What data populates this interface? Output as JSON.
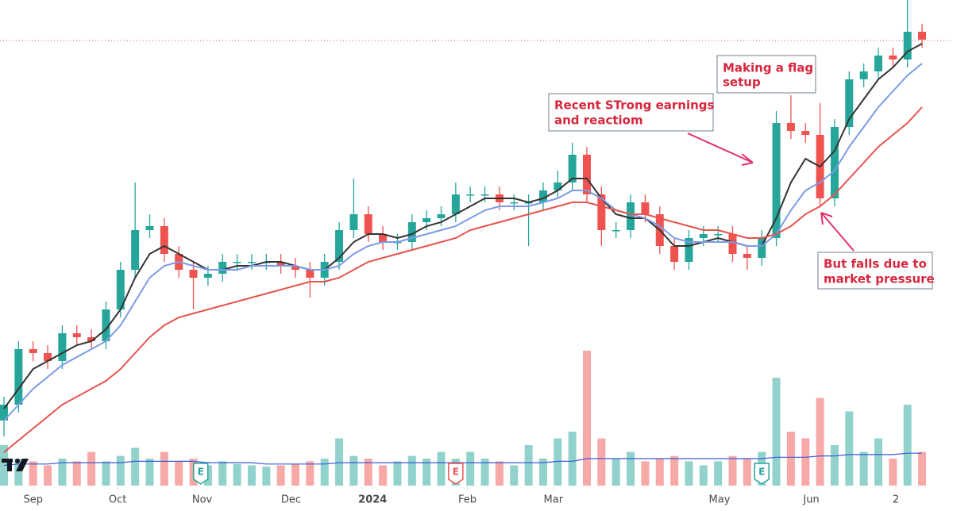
{
  "chart_data": {
    "type": "candlestick",
    "ylim": [
      0,
      120
    ],
    "volume_lim": [
      0,
      100
    ],
    "last_price": 109.8,
    "up_color": "#26a69a",
    "down_color": "#ef5350",
    "open": [
      14,
      18,
      32,
      31,
      29,
      36,
      35,
      34,
      42,
      52,
      62,
      63,
      56,
      52,
      50,
      51,
      54,
      54,
      54,
      54,
      53,
      52,
      50,
      54,
      62,
      66,
      61,
      59,
      59,
      64,
      65,
      66,
      71,
      71,
      71,
      69,
      69,
      69,
      72,
      74,
      81,
      71,
      62,
      62,
      69,
      66,
      58,
      54,
      60,
      61,
      61,
      56,
      55,
      60,
      89,
      87,
      86,
      70,
      88,
      100,
      102,
      106,
      105,
      112
    ],
    "high": [
      20,
      34,
      34,
      33,
      38,
      38,
      37,
      44,
      54,
      74,
      66,
      65,
      58,
      54,
      53,
      56,
      56,
      56,
      56,
      56,
      55,
      54,
      56,
      64,
      75,
      68,
      63,
      61,
      66,
      67,
      68,
      74,
      73,
      73,
      73,
      71,
      71,
      74,
      77,
      84,
      83,
      73,
      64,
      71,
      71,
      68,
      60,
      62,
      63,
      63,
      63,
      58,
      62,
      92,
      96,
      89,
      94,
      90,
      102,
      104,
      108,
      108,
      120,
      114
    ],
    "low": [
      10,
      16,
      29,
      27,
      27,
      33,
      32,
      32,
      40,
      50,
      60,
      54,
      50,
      42,
      48,
      49,
      52,
      52,
      52,
      51,
      50,
      45,
      48,
      52,
      60,
      59,
      57,
      57,
      57,
      62,
      63,
      64,
      69,
      69,
      67,
      67,
      58,
      67,
      70,
      72,
      69,
      58,
      60,
      60,
      64,
      56,
      52,
      52,
      58,
      59,
      54,
      52,
      53,
      58,
      85,
      84,
      68,
      68,
      86,
      98,
      100,
      103,
      103,
      108
    ],
    "close": [
      18,
      32,
      31,
      29,
      36,
      35,
      34,
      42,
      52,
      62,
      63,
      56,
      52,
      50,
      51,
      54,
      54,
      54,
      54,
      53,
      52,
      50,
      54,
      62,
      66,
      61,
      59,
      59,
      64,
      65,
      66,
      71,
      71,
      71,
      69,
      69,
      69,
      72,
      74,
      81,
      71,
      62,
      62,
      69,
      66,
      58,
      54,
      60,
      61,
      61,
      56,
      55,
      60,
      89,
      87,
      86,
      70,
      88,
      100,
      102,
      106,
      105,
      112,
      110
    ],
    "volume": [
      30,
      20,
      18,
      15,
      20,
      18,
      25,
      18,
      22,
      28,
      20,
      25,
      18,
      20,
      15,
      18,
      16,
      15,
      14,
      15,
      16,
      18,
      20,
      35,
      22,
      20,
      15,
      18,
      22,
      20,
      25,
      20,
      25,
      20,
      18,
      15,
      30,
      20,
      35,
      40,
      100,
      35,
      20,
      25,
      18,
      20,
      22,
      18,
      15,
      18,
      22,
      20,
      25,
      80,
      40,
      35,
      65,
      30,
      55,
      25,
      35,
      20,
      60,
      25
    ],
    "volume_ma": {
      "color": "#3d5bd9",
      "values": [
        15,
        16,
        16,
        16,
        17,
        17,
        17,
        17,
        17,
        18,
        18,
        18,
        18,
        18,
        17,
        17,
        17,
        17,
        16,
        16,
        16,
        16,
        16,
        17,
        17,
        17,
        17,
        17,
        17,
        17,
        17,
        17,
        17,
        17,
        17,
        17,
        17,
        17,
        18,
        18,
        20,
        20,
        20,
        20,
        20,
        20,
        20,
        20,
        20,
        20,
        20,
        20,
        20,
        21,
        21,
        21,
        22,
        22,
        23,
        23,
        23,
        23,
        24,
        24
      ]
    },
    "series": [
      {
        "color": "#333333",
        "values": [
          17,
          22,
          27,
          29,
          31,
          33,
          34,
          37,
          42,
          50,
          56,
          58,
          56,
          54,
          52,
          52,
          53,
          53,
          54,
          54,
          53,
          52,
          52,
          55,
          59,
          61,
          61,
          60,
          61,
          63,
          64,
          66,
          68,
          70,
          70,
          70,
          69,
          70,
          72,
          75,
          75,
          70,
          66,
          65,
          65,
          62,
          58,
          58,
          59,
          60,
          59,
          58,
          58,
          65,
          74,
          80,
          78,
          82,
          90,
          95,
          100,
          103,
          107,
          109
        ]
      },
      {
        "color": "#7b9be6",
        "values": [
          14,
          18,
          22,
          25,
          28,
          30,
          32,
          34,
          38,
          44,
          50,
          53,
          54,
          53,
          52,
          52,
          52,
          53,
          53,
          53,
          53,
          52,
          52,
          53,
          56,
          58,
          59,
          59,
          60,
          61,
          62,
          63,
          65,
          67,
          68,
          68,
          68,
          69,
          70,
          72,
          72,
          70,
          67,
          66,
          65,
          63,
          60,
          59,
          59,
          59,
          59,
          58,
          58,
          61,
          67,
          72,
          74,
          77,
          83,
          88,
          93,
          97,
          101,
          104
        ]
      },
      {
        "color": "#e8534f",
        "values": [
          6,
          9,
          12,
          15,
          18,
          20,
          22,
          24,
          27,
          31,
          35,
          38,
          40,
          41,
          42,
          43,
          44,
          45,
          46,
          47,
          48,
          49,
          49,
          50,
          52,
          54,
          55,
          56,
          57,
          58,
          59,
          60,
          62,
          63,
          64,
          65,
          66,
          67,
          68,
          69,
          69,
          68,
          67,
          66,
          66,
          65,
          64,
          63,
          62,
          62,
          61,
          60,
          60,
          61,
          63,
          66,
          68,
          71,
          75,
          79,
          83,
          86,
          89,
          93
        ]
      }
    ],
    "xticks": [
      {
        "value": 2,
        "label": "Sep"
      },
      {
        "value": 7.8,
        "label": "Oct"
      },
      {
        "value": 13.6,
        "label": "Nov"
      },
      {
        "value": 19.7,
        "label": "Dec"
      },
      {
        "value": 25.3,
        "label": "2024"
      },
      {
        "value": 31.8,
        "label": "Feb"
      },
      {
        "value": 37.7,
        "label": "Mar"
      },
      {
        "value": 49.1,
        "label": "May"
      },
      {
        "value": 55.4,
        "label": "Jun"
      },
      {
        "value": 61.2,
        "label": "2"
      }
    ],
    "earnings": [
      {
        "at": 13.5,
        "label": "E",
        "color": "#26a69a"
      },
      {
        "at": 31,
        "label": "E",
        "color": "#ef5350"
      },
      {
        "at": 52,
        "label": "E",
        "color": "#26a69a"
      }
    ],
    "annotations": [
      {
        "lines": [
          "Recent STrong earnings",
          "and reactiom"
        ]
      },
      {
        "lines": [
          "Making a flag",
          "setup"
        ]
      },
      {
        "lines": [
          "But falls due to",
          "market pressure"
        ]
      }
    ]
  }
}
